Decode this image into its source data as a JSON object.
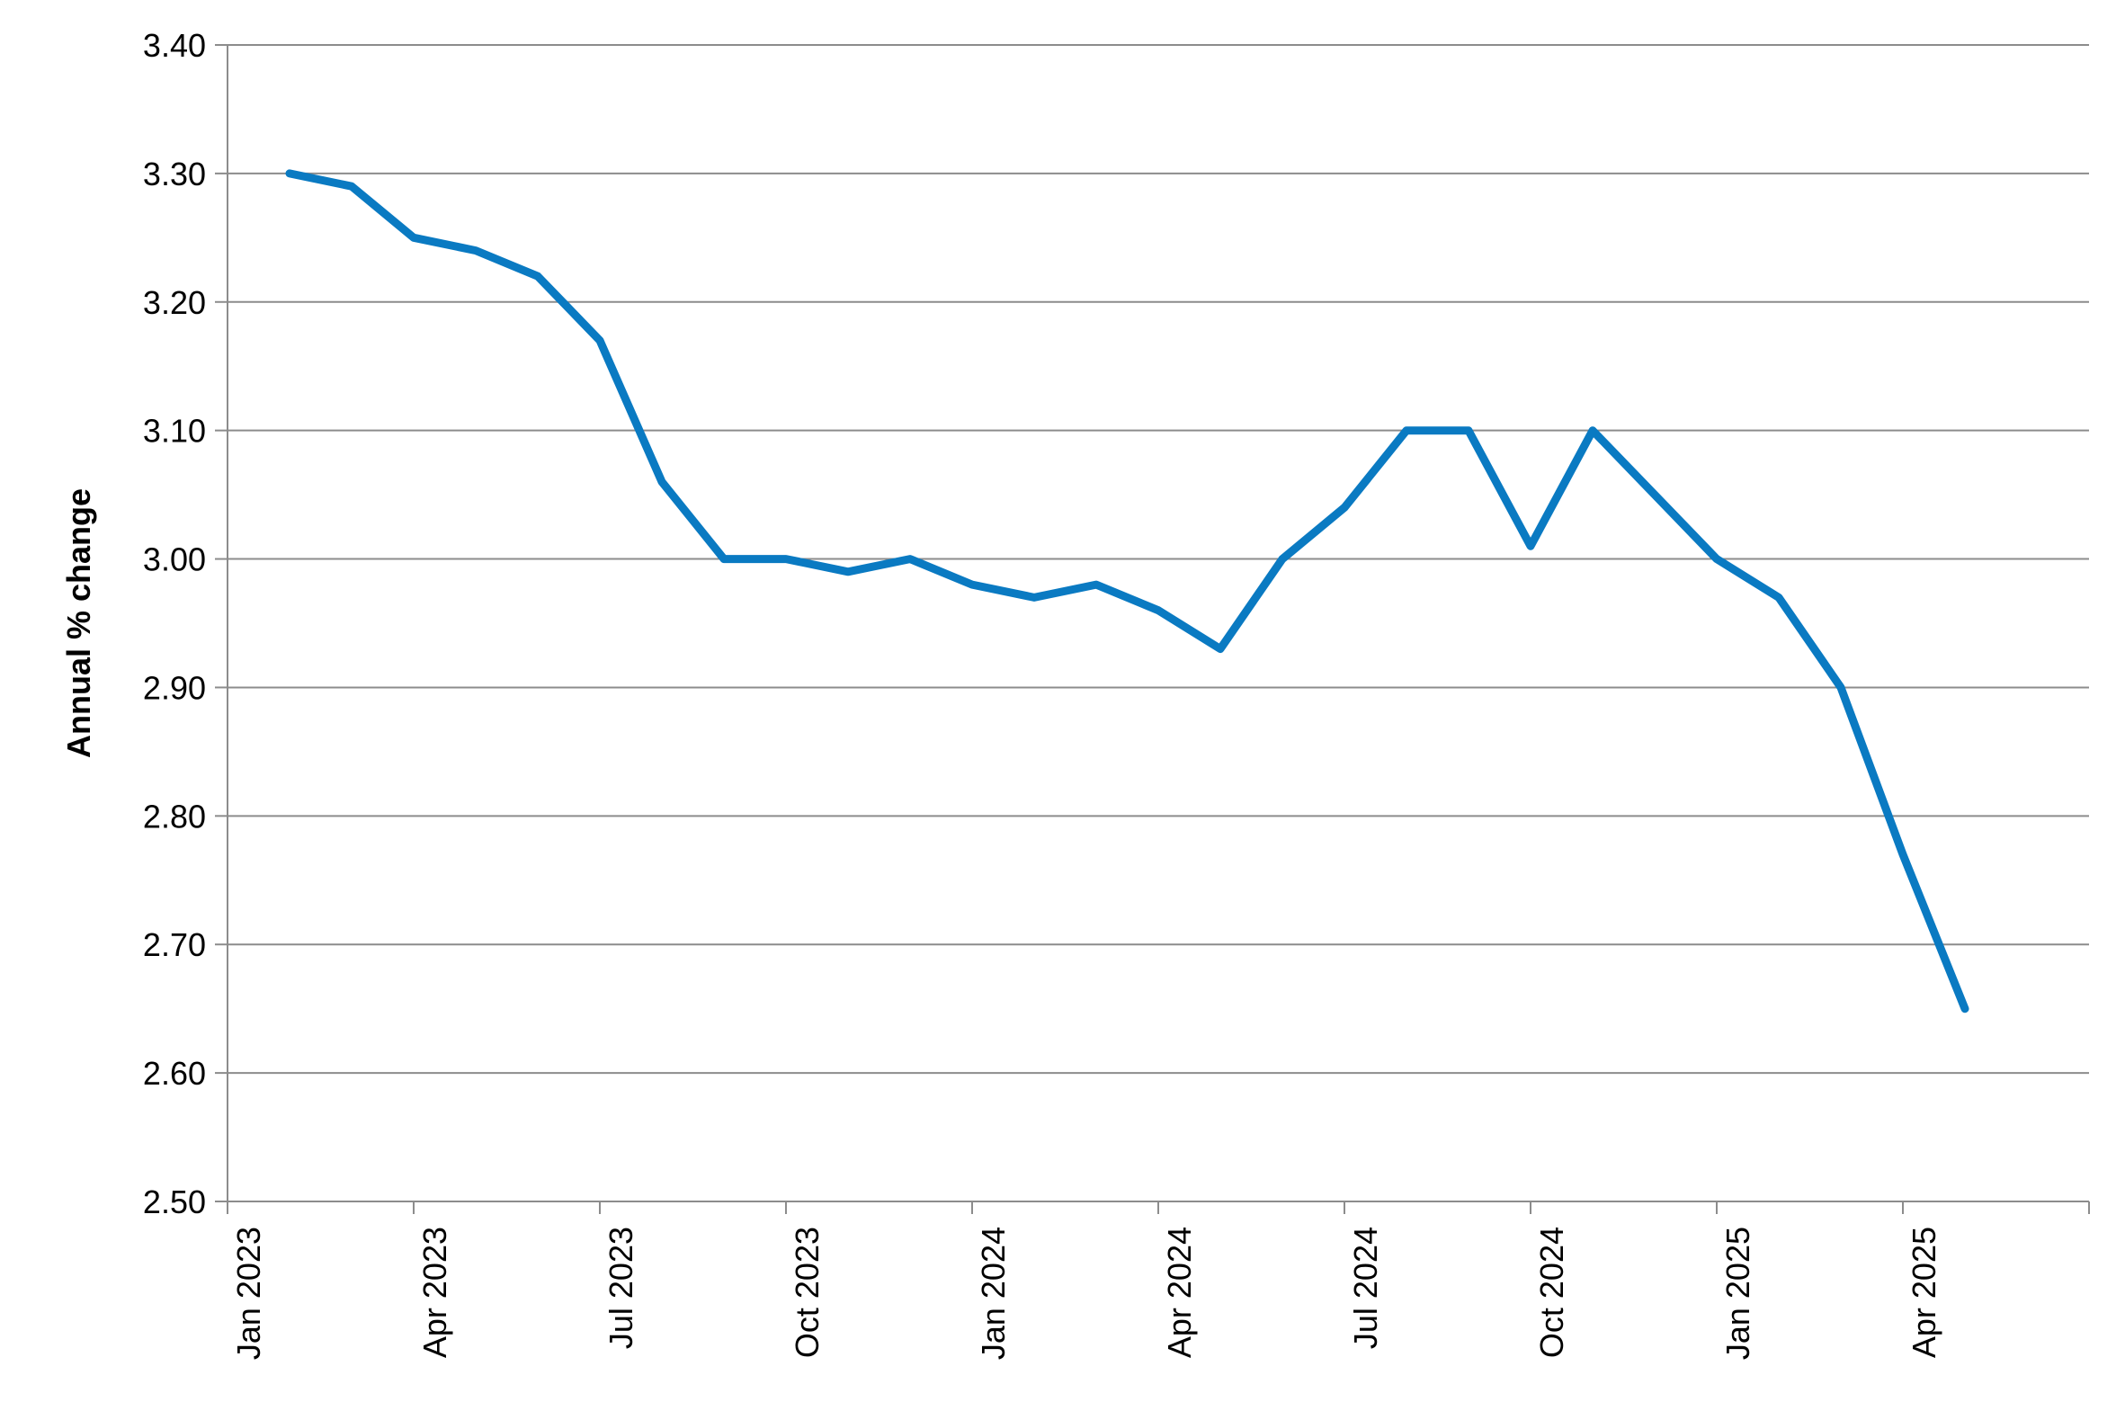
{
  "chart_data": {
    "type": "line",
    "title": "",
    "xlabel": "",
    "ylabel": "Annual % change",
    "ylim": [
      2.5,
      3.4
    ],
    "yticks": [
      "2.50",
      "2.60",
      "2.70",
      "2.80",
      "2.90",
      "3.00",
      "3.10",
      "3.20",
      "3.30",
      "3.40"
    ],
    "xticks": [
      "Jan 2023",
      "Apr 2023",
      "Jul 2023",
      "Oct 2023",
      "Jan 2024",
      "Apr 2024",
      "Jul 2024",
      "Oct 2024",
      "Jan 2025",
      "Apr 2025"
    ],
    "x_range": [
      "2023-01",
      "2025-07"
    ],
    "grid": true,
    "legend": "none",
    "series": [
      {
        "color": "#0a7ac2",
        "x": [
          "2023-02",
          "2023-03",
          "2023-04",
          "2023-05",
          "2023-06",
          "2023-07",
          "2023-08",
          "2023-09",
          "2023-10",
          "2023-11",
          "2023-12",
          "2024-01",
          "2024-02",
          "2024-03",
          "2024-04",
          "2024-05",
          "2024-06",
          "2024-07",
          "2024-08",
          "2024-09",
          "2024-10",
          "2024-11",
          "2024-12",
          "2025-01",
          "2025-02",
          "2025-03",
          "2025-04",
          "2025-05"
        ],
        "values": [
          3.3,
          3.29,
          3.25,
          3.24,
          3.22,
          3.17,
          3.06,
          3.0,
          3.0,
          2.99,
          3.0,
          2.98,
          2.97,
          2.98,
          2.96,
          2.93,
          3.0,
          3.04,
          3.1,
          3.1,
          3.01,
          3.1,
          3.05,
          3.0,
          2.97,
          2.9,
          2.77,
          2.65
        ]
      }
    ]
  }
}
